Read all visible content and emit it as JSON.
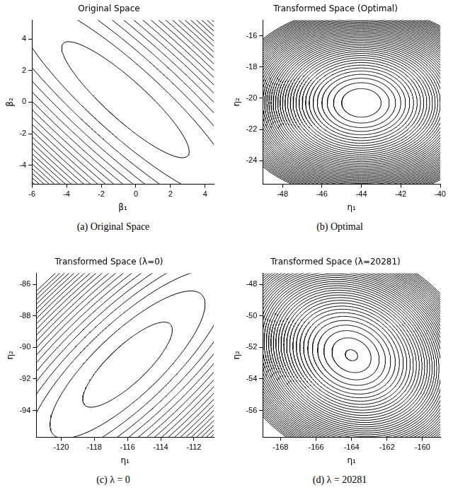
{
  "chart_data": [
    {
      "type": "contour",
      "title": "Original Space",
      "caption": "(a) Original Space",
      "x_label": "β₁",
      "y_label": "β₂",
      "xlim": [
        -6,
        4.5
      ],
      "xticks": [
        -6,
        -4,
        -2,
        0,
        2,
        4
      ],
      "ylim": [
        -5.2,
        5.2
      ],
      "yticks": [
        -4,
        -2,
        0,
        2,
        4
      ],
      "center": [
        -0.6,
        0.15
      ],
      "matrix": [
        [
          0.366,
          0.327
        ],
        [
          0.327,
          0.366
        ]
      ],
      "levels": [
        1,
        3,
        5,
        7,
        9,
        11,
        13,
        15,
        17,
        19,
        21,
        23,
        25,
        27,
        29,
        31,
        33,
        35,
        37,
        39
      ],
      "color": "#000000",
      "grid": false
    },
    {
      "type": "contour",
      "title": "Transformed Space (Optimal)",
      "caption": "(b) Optimal",
      "x_label": "η₁",
      "y_label": "η₂",
      "xlim": [
        -49,
        -40
      ],
      "xticks": [
        -48,
        -46,
        -44,
        -42,
        -40
      ],
      "ylim": [
        -25.5,
        -15
      ],
      "yticks": [
        -24,
        -22,
        -20,
        -18,
        -16
      ],
      "center": [
        -44,
        -20.3
      ],
      "matrix": [
        [
          1,
          0
        ],
        [
          0,
          1.2
        ]
      ],
      "levels": [
        1,
        2,
        3,
        4,
        5,
        6,
        7,
        8,
        9,
        10,
        11,
        12,
        13,
        14,
        15,
        16,
        17,
        18,
        19,
        20,
        21,
        22,
        23,
        24,
        25,
        26,
        27,
        28,
        29,
        30,
        31,
        32,
        33,
        34,
        35,
        36,
        37,
        38,
        39,
        40,
        41,
        42,
        43,
        44,
        45
      ],
      "color": "#000000",
      "grid": false
    },
    {
      "type": "contour",
      "title": "Transformed Space (λ=0)",
      "caption": "(c) λ = 0",
      "x_label": "η₁",
      "y_label": "η₂",
      "xlim": [
        -121.5,
        -110.8
      ],
      "xticks": [
        -120,
        -118,
        -116,
        -114,
        -112
      ],
      "ylim": [
        -95.7,
        -85.3
      ],
      "yticks": [
        -94,
        -92,
        -90,
        -88,
        -86
      ],
      "center": [
        -116,
        -91.1
      ],
      "matrix": [
        [
          0.4155,
          -0.34
        ],
        [
          -0.34,
          0.4155
        ]
      ],
      "levels": [
        1,
        3,
        5,
        7,
        9,
        11,
        13,
        15,
        17,
        19,
        21,
        23,
        25,
        27,
        29,
        31,
        33,
        35,
        37,
        39
      ],
      "color": "#000000",
      "grid": false
    },
    {
      "type": "contour",
      "title": "Transformed Space (λ=20281)",
      "caption": "(d) λ = 20281",
      "x_label": "η₁",
      "y_label": "η₂",
      "xlim": [
        -169,
        -159
      ],
      "xticks": [
        -168,
        -166,
        -164,
        -162,
        -160
      ],
      "ylim": [
        -57.7,
        -47.3
      ],
      "yticks": [
        -56,
        -54,
        -52,
        -50,
        -48
      ],
      "center": [
        -164,
        -52.5
      ],
      "matrix": [
        [
          0.85,
          0.15
        ],
        [
          0.15,
          0.85
        ]
      ],
      "levels": [
        0.1,
        1,
        2,
        3,
        4,
        5,
        6,
        7,
        8,
        9,
        10,
        11,
        12,
        13,
        14,
        15,
        16,
        17,
        18,
        19,
        20,
        21,
        22,
        23,
        24,
        25,
        26,
        27,
        28,
        29,
        30,
        31,
        32,
        33,
        34,
        35,
        36,
        37,
        38,
        39,
        40
      ],
      "color": "#000000",
      "grid": false
    }
  ]
}
